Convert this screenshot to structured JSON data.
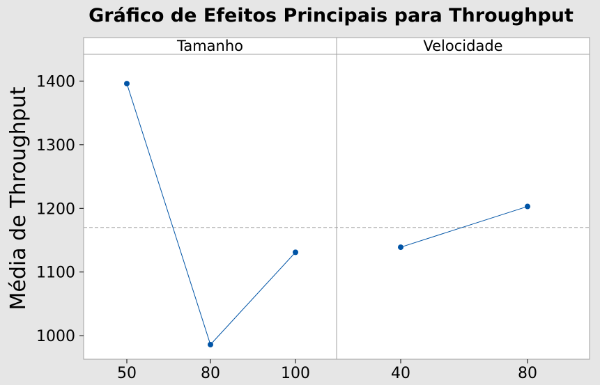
{
  "chart_data": {
    "type": "line",
    "title": "Gráfico de Efeitos Principais para Throughput",
    "ylabel": "Média de Throughput",
    "ylim": [
      963,
      1442
    ],
    "yticks": [
      1000,
      1100,
      1200,
      1300,
      1400
    ],
    "reference_line": 1170,
    "grid": false,
    "panels": [
      {
        "name": "Tamanho",
        "categories": [
          "50",
          "80",
          "100"
        ],
        "values": [
          1396,
          986,
          1131
        ]
      },
      {
        "name": "Velocidade",
        "categories": [
          "40",
          "80"
        ],
        "values": [
          1139,
          1203
        ]
      }
    ],
    "colors": {
      "series": "#0054a6",
      "reference": "#a6a6a6",
      "frame": "#a0a0a0",
      "figure_bg": "#e6e6e6",
      "plot_bg": "#ffffff"
    }
  }
}
